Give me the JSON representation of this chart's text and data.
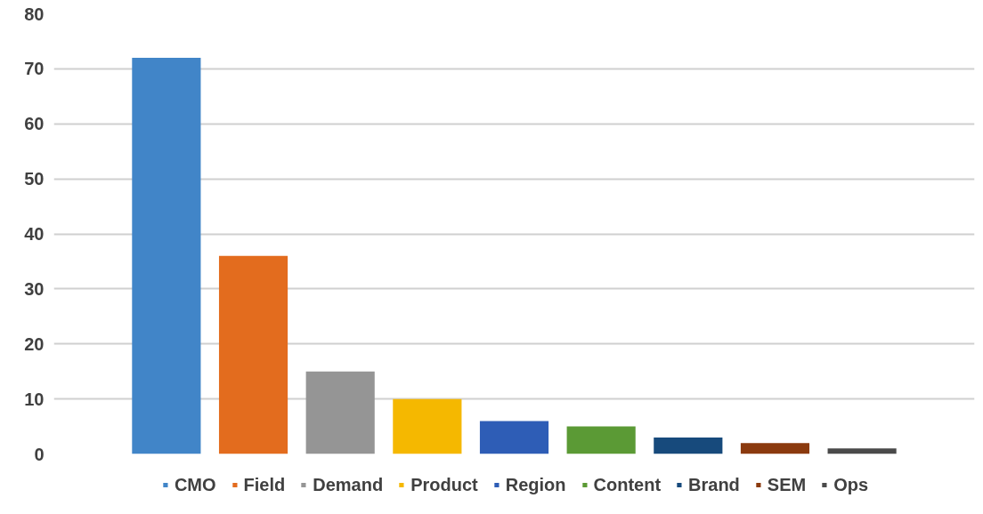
{
  "chart_data": {
    "type": "bar",
    "categories": [
      null
    ],
    "series": [
      {
        "name": "CMO",
        "color": "#4185c8",
        "values": [
          72
        ]
      },
      {
        "name": "Field",
        "color": "#e36c1e",
        "values": [
          36
        ]
      },
      {
        "name": "Demand",
        "color": "#959595",
        "values": [
          15
        ]
      },
      {
        "name": "Product",
        "color": "#f5b800",
        "values": [
          10
        ]
      },
      {
        "name": "Region",
        "color": "#2e5db6",
        "values": [
          6
        ]
      },
      {
        "name": "Content",
        "color": "#5b9a35",
        "values": [
          5
        ]
      },
      {
        "name": "Brand",
        "color": "#174a7c",
        "values": [
          3
        ]
      },
      {
        "name": "SEM",
        "color": "#8b3a0e",
        "values": [
          2
        ]
      },
      {
        "name": "Ops",
        "color": "#4a4a4a",
        "values": [
          1
        ]
      }
    ],
    "ylim": [
      0,
      80
    ],
    "yticks": [
      0,
      10,
      20,
      30,
      40,
      50,
      60,
      70,
      80
    ],
    "grid": "y",
    "legend": "bottom",
    "tick_labels": "y"
  }
}
